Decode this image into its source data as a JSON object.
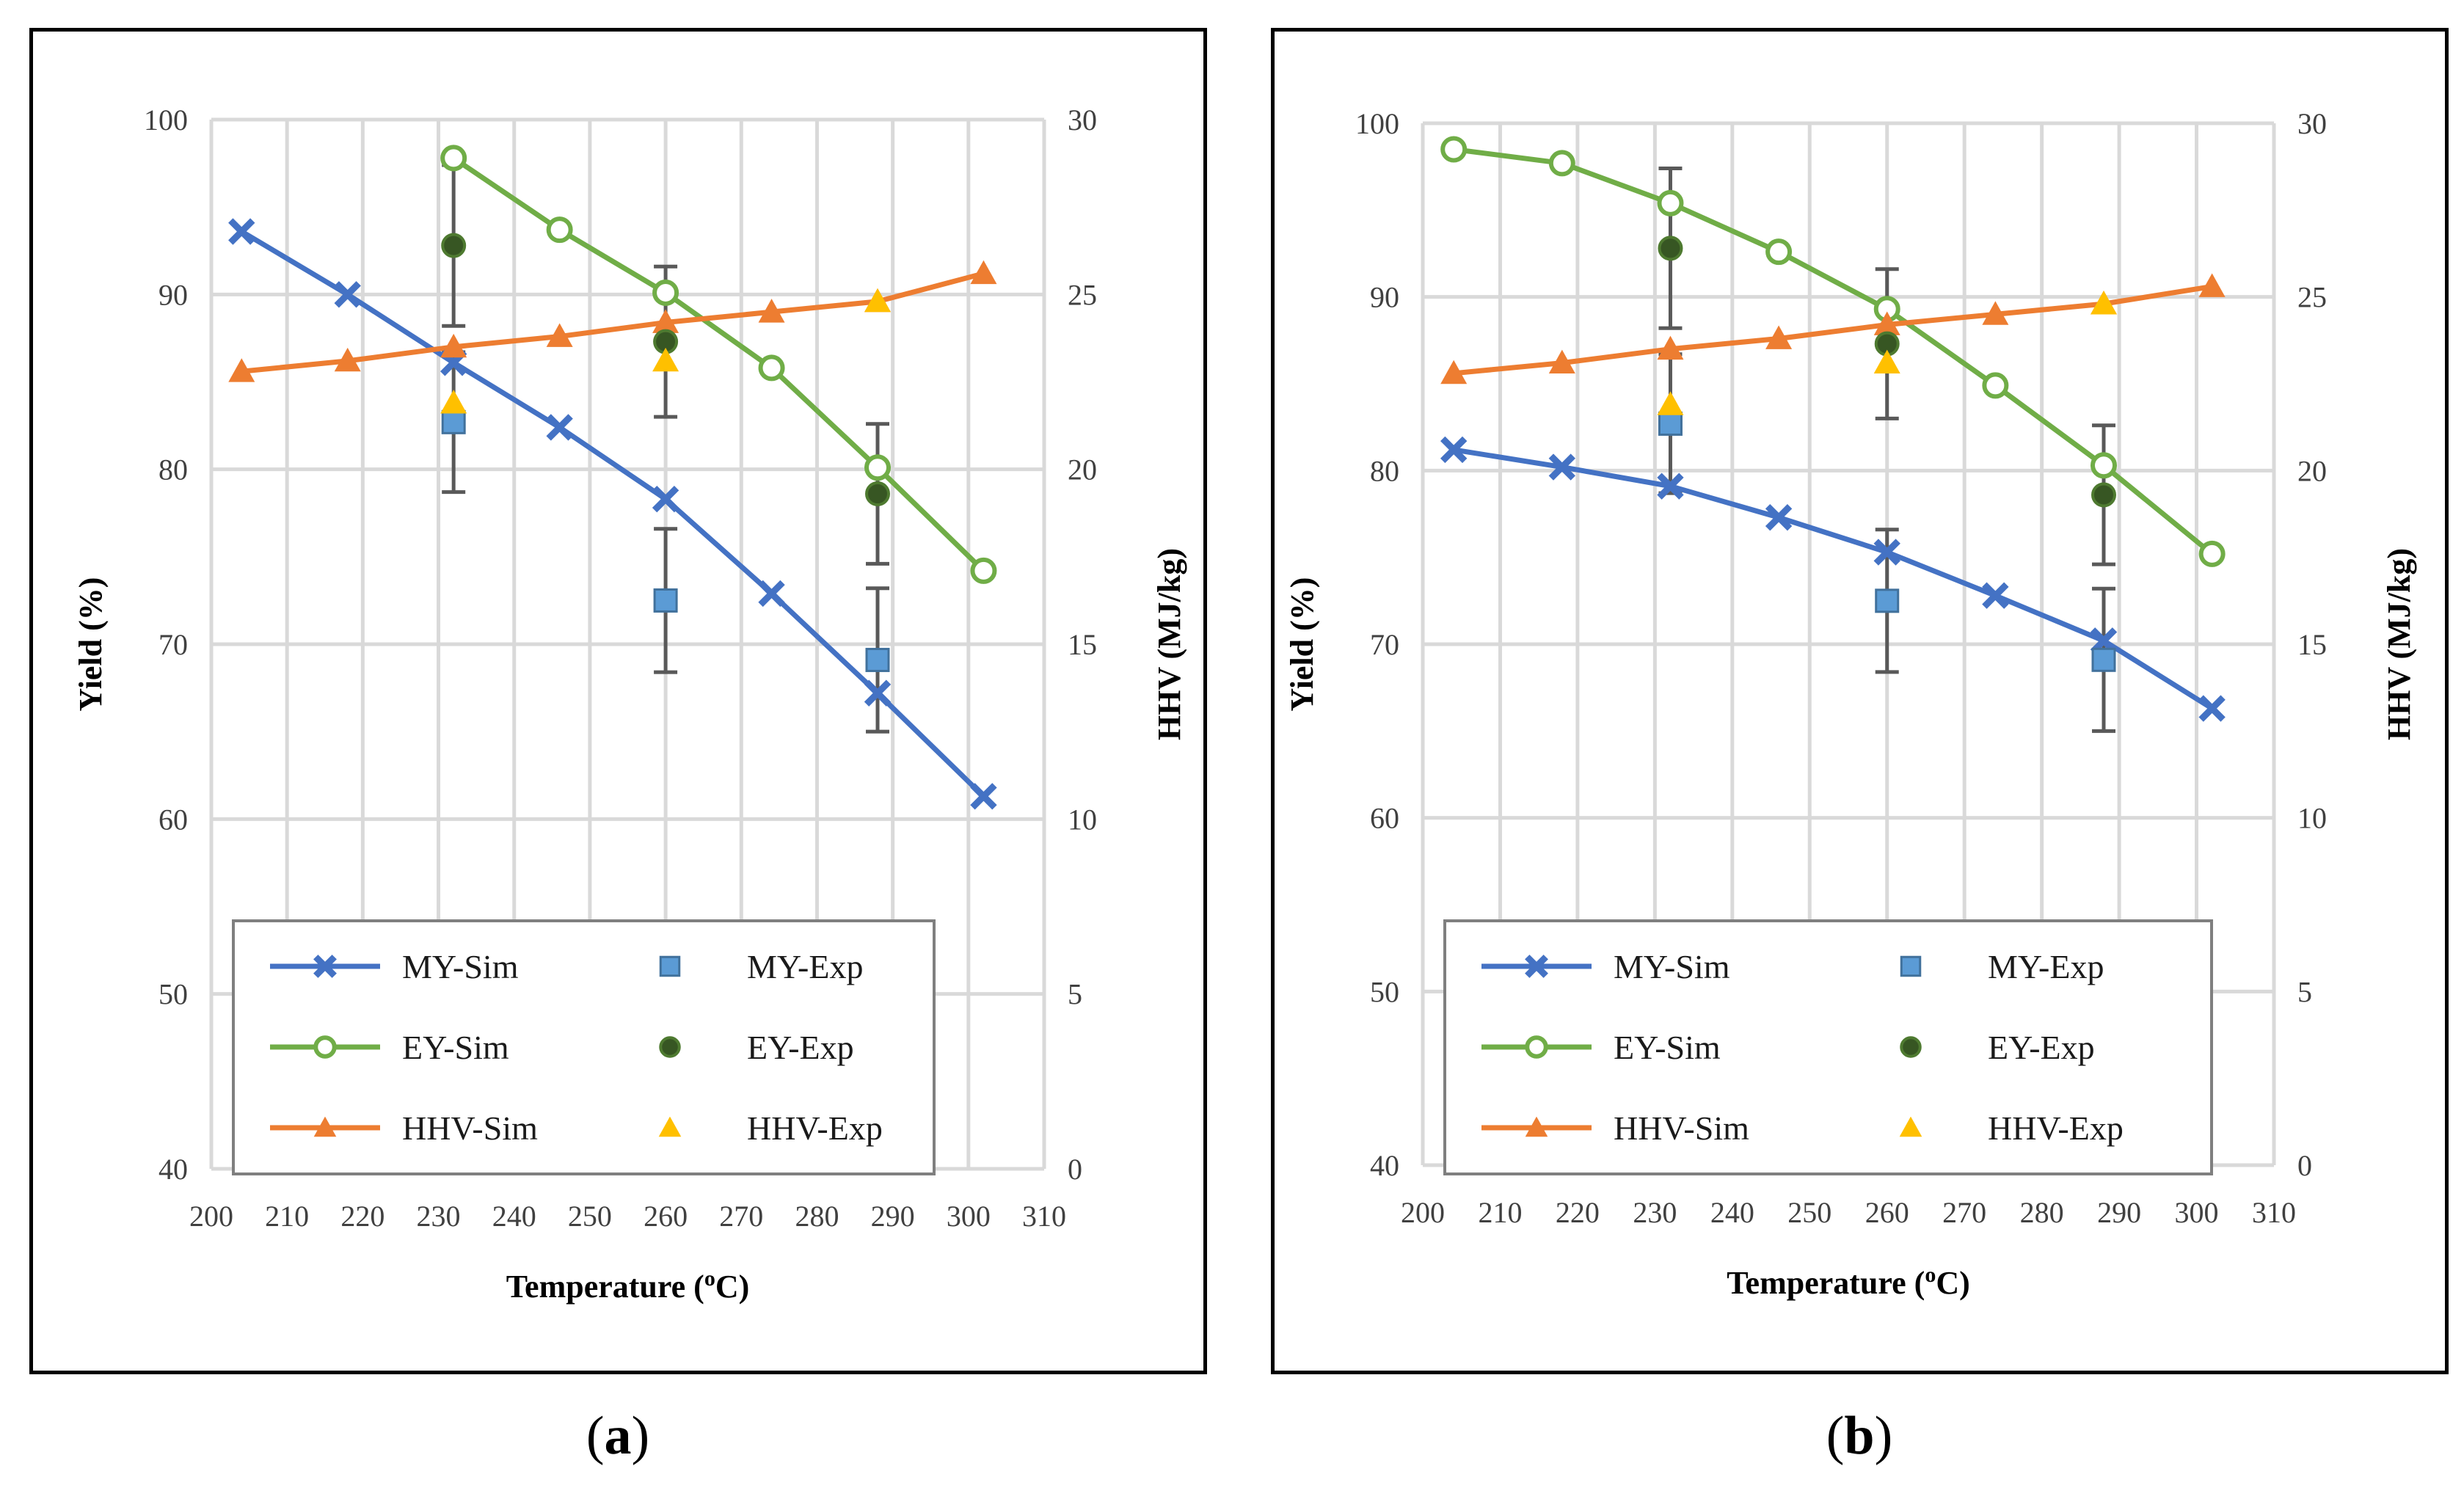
{
  "chart_data": [
    {
      "panel": "a",
      "caption": "a",
      "type": "line",
      "xlabel": "Temperature (",
      "xlabel_sup": "o",
      "xlabel_end": "C)",
      "ylabel": "Yield (%)",
      "y2label": "HHV (MJ/kg)",
      "xlim": [
        200,
        310
      ],
      "ylim": [
        40,
        100
      ],
      "y2lim": [
        0,
        30
      ],
      "xticks": [
        "200",
        "210",
        "220",
        "230",
        "240",
        "250",
        "260",
        "270",
        "280",
        "290",
        "300",
        "310"
      ],
      "yticks": [
        "40",
        "50",
        "60",
        "70",
        "80",
        "90",
        "100"
      ],
      "y2ticks": [
        "0",
        "5",
        "10",
        "15",
        "20",
        "25",
        "30"
      ],
      "series": [
        {
          "name": "MY-Sim",
          "axis": "y",
          "kind": "sim",
          "marker": "x",
          "color": "#4472C4",
          "x": [
            204,
            218,
            232,
            246,
            260,
            274,
            288,
            302
          ],
          "values": [
            93.6,
            90.0,
            86.1,
            82.4,
            78.3,
            72.9,
            67.2,
            61.3
          ]
        },
        {
          "name": "EY-Sim",
          "axis": "y",
          "kind": "sim",
          "marker": "circle-open",
          "color": "#70AD47",
          "x": [
            232,
            246,
            260,
            274,
            288,
            302
          ],
          "values": [
            97.8,
            93.7,
            90.1,
            85.8,
            80.1,
            74.2
          ]
        },
        {
          "name": "HHV-Sim",
          "axis": "y2",
          "kind": "sim",
          "marker": "triangle",
          "color": "#ED7D31",
          "x": [
            204,
            218,
            232,
            246,
            260,
            274,
            288,
            302
          ],
          "values": [
            22.8,
            23.1,
            23.5,
            23.8,
            24.2,
            24.5,
            24.8,
            25.6
          ]
        },
        {
          "name": "MY-Exp",
          "axis": "y",
          "kind": "exp",
          "marker": "square",
          "color": "#5B9BD5",
          "x": [
            232,
            260,
            288
          ],
          "values": [
            82.7,
            72.5,
            69.1
          ],
          "err": [
            4.0,
            4.1,
            4.1
          ]
        },
        {
          "name": "EY-Exp",
          "axis": "y",
          "kind": "exp",
          "marker": "circle-dark",
          "color": "#375623",
          "x": [
            232,
            260,
            288
          ],
          "values": [
            92.8,
            87.3,
            78.6
          ],
          "err": [
            4.6,
            4.3,
            4.0
          ]
        },
        {
          "name": "HHV-Exp",
          "axis": "y2",
          "kind": "exp",
          "marker": "triangle",
          "color": "#FFC000",
          "x": [
            232,
            260,
            288
          ],
          "values": [
            21.9,
            23.1,
            24.8
          ],
          "err": [
            0,
            0,
            0
          ]
        }
      ],
      "legend": [
        [
          "MY-Sim",
          "MY-Exp"
        ],
        [
          "EY-Sim",
          "EY-Exp"
        ],
        [
          "HHV-Sim",
          "HHV-Exp"
        ]
      ]
    },
    {
      "panel": "b",
      "caption": "b",
      "type": "line",
      "xlabel": "Temperature (",
      "xlabel_sup": "o",
      "xlabel_end": "C)",
      "ylabel": "Yield (%)",
      "y2label": "HHV (MJ/kg)",
      "xlim": [
        200,
        310
      ],
      "ylim": [
        40,
        100
      ],
      "y2lim": [
        0,
        30
      ],
      "xticks": [
        "200",
        "210",
        "220",
        "230",
        "240",
        "250",
        "260",
        "270",
        "280",
        "290",
        "300",
        "310"
      ],
      "yticks": [
        "40",
        "50",
        "60",
        "70",
        "80",
        "90",
        "100"
      ],
      "y2ticks": [
        "0",
        "5",
        "10",
        "15",
        "20",
        "25",
        "30"
      ],
      "series": [
        {
          "name": "MY-Sim",
          "axis": "y",
          "kind": "sim",
          "marker": "x",
          "color": "#4472C4",
          "x": [
            204,
            218,
            232,
            246,
            260,
            274,
            288,
            302
          ],
          "values": [
            81.2,
            80.2,
            79.1,
            77.3,
            75.3,
            72.8,
            70.2,
            66.3
          ]
        },
        {
          "name": "EY-Sim",
          "axis": "y",
          "kind": "sim",
          "marker": "circle-open",
          "color": "#70AD47",
          "x": [
            204,
            218,
            232,
            246,
            260,
            274,
            288,
            302
          ],
          "values": [
            98.5,
            97.7,
            95.4,
            92.6,
            89.3,
            84.9,
            80.3,
            75.2
          ]
        },
        {
          "name": "HHV-Sim",
          "axis": "y2",
          "kind": "sim",
          "marker": "triangle",
          "color": "#ED7D31",
          "x": [
            204,
            218,
            232,
            246,
            260,
            274,
            288,
            302
          ],
          "values": [
            22.8,
            23.1,
            23.5,
            23.8,
            24.2,
            24.5,
            24.8,
            25.3
          ]
        },
        {
          "name": "MY-Exp",
          "axis": "y",
          "kind": "exp",
          "marker": "square",
          "color": "#5B9BD5",
          "x": [
            232,
            260,
            288
          ],
          "values": [
            82.7,
            72.5,
            69.1
          ],
          "err": [
            4.0,
            4.1,
            4.1
          ]
        },
        {
          "name": "EY-Exp",
          "axis": "y",
          "kind": "exp",
          "marker": "circle-dark",
          "color": "#375623",
          "x": [
            232,
            260,
            288
          ],
          "values": [
            92.8,
            87.3,
            78.6
          ],
          "err": [
            4.6,
            4.3,
            4.0
          ]
        },
        {
          "name": "HHV-Exp",
          "axis": "y2",
          "kind": "exp",
          "marker": "triangle",
          "color": "#FFC000",
          "x": [
            232,
            260,
            288
          ],
          "values": [
            21.9,
            23.1,
            24.8
          ],
          "err": [
            0,
            0,
            0
          ]
        }
      ],
      "legend": [
        [
          "MY-Sim",
          "MY-Exp"
        ],
        [
          "EY-Sim",
          "EY-Exp"
        ],
        [
          "HHV-Sim",
          "HHV-Exp"
        ]
      ]
    }
  ]
}
